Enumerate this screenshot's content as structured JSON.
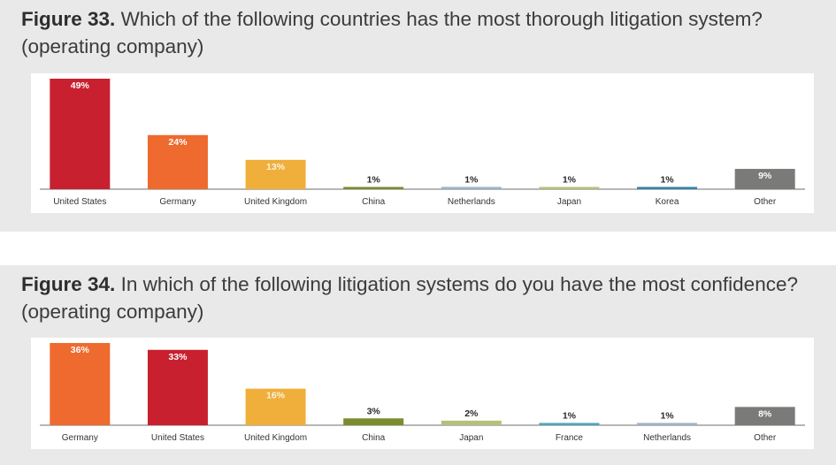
{
  "colors": {
    "United States": "#c8202f",
    "Germany": "#ee6a2e",
    "United Kingdom": "#efaf3a",
    "China": "#7a8c2e",
    "Netherlands": "#9eb1c8",
    "Japan": "#b5c07b",
    "Korea": "#2f86a8",
    "France": "#4fa3b8",
    "Other": "#7a7a78"
  },
  "figures": [
    {
      "lead": "Figure 33.",
      "title": "Which of the following countries has the most thorough litigation system?",
      "subtitle": "(operating company)"
    },
    {
      "lead": "Figure 34.",
      "title": "In which of the following litigation systems do you have the most confidence?",
      "subtitle": "(operating company)"
    }
  ],
  "chart_data": [
    {
      "type": "bar",
      "title": "Figure 33. Which of the following countries has the most thorough litigation system? (operating company)",
      "categories": [
        "United States",
        "Germany",
        "United Kingdom",
        "China",
        "Netherlands",
        "Japan",
        "Korea",
        "Other"
      ],
      "values": [
        49,
        24,
        13,
        1,
        1,
        1,
        1,
        9
      ],
      "labels": [
        "49%",
        "24%",
        "13%",
        "1%",
        "1%",
        "1%",
        "1%",
        "9%"
      ],
      "unit": "%",
      "grid": false,
      "ylim": [
        0,
        49
      ]
    },
    {
      "type": "bar",
      "title": "Figure 34. In which of the following litigation systems do you have the most confidence? (operating company)",
      "categories": [
        "Germany",
        "United States",
        "United Kingdom",
        "China",
        "Japan",
        "France",
        "Netherlands",
        "Other"
      ],
      "values": [
        36,
        33,
        16,
        3,
        2,
        1,
        1,
        8
      ],
      "labels": [
        "36%",
        "33%",
        "16%",
        "3%",
        "2%",
        "1%",
        "1%",
        "8%"
      ],
      "unit": "%",
      "grid": false,
      "ylim": [
        0,
        36
      ]
    }
  ]
}
